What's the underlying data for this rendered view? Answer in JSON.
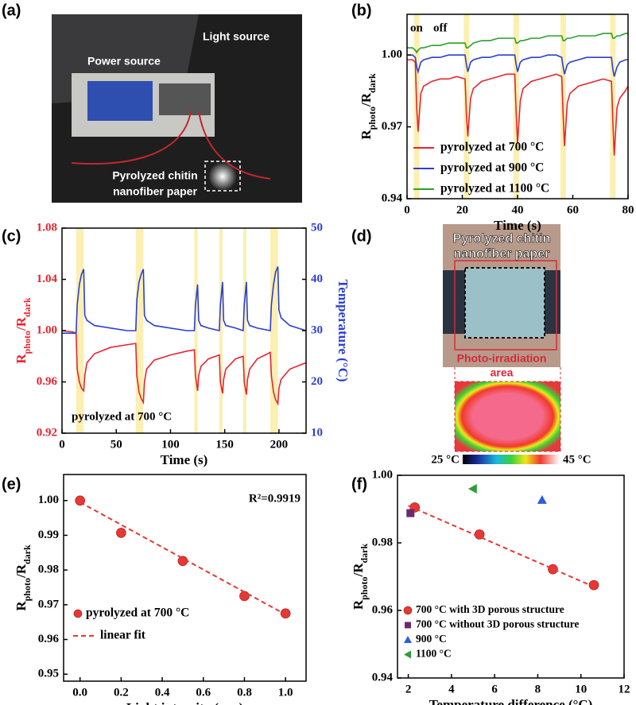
{
  "photos": [
    {
      "panel": "(a)",
      "labels": [
        "Light source",
        "Power source",
        "Pyrolyzed chitin",
        "nanofiber paper"
      ]
    },
    {
      "panel": "(d)",
      "labels": [
        "Pyrolyzed chitin",
        "nanofiber paper",
        "Photo-irradiation",
        "area"
      ],
      "colorbar": [
        "25 °C",
        "45 °C"
      ]
    }
  ],
  "chart_data": [
    {
      "type": "line",
      "panel": "(b)",
      "xlabel": "Time (s)",
      "ylabel": [
        "R",
        "photo",
        "/R",
        "dark"
      ],
      "annotations": [
        "on",
        "off"
      ],
      "legend": "lower left",
      "xlim": [
        0,
        80
      ],
      "xticks": [
        0,
        20,
        40,
        60,
        80
      ],
      "ylim": [
        0.94,
        1.017
      ],
      "yticks": [
        0.94,
        0.97,
        {
          "value": 1.0,
          "label": "1.00"
        }
      ],
      "highlight_x": [
        [
          2.5,
          4.5
        ],
        [
          20.5,
          22.5
        ],
        [
          38.5,
          40.5
        ],
        [
          55.5,
          57.5
        ],
        [
          73.5,
          75.5
        ]
      ],
      "x": [
        0,
        2,
        3,
        3.5,
        4,
        5,
        6,
        9,
        12,
        15,
        18,
        21,
        21.5,
        22,
        23,
        24,
        27,
        30,
        33,
        36,
        39,
        39.5,
        40,
        41,
        42,
        45,
        48,
        51,
        54,
        56,
        56.5,
        57,
        58,
        59,
        62,
        65,
        68,
        71,
        74,
        74.5,
        75,
        76,
        77,
        79,
        80
      ],
      "series": [
        {
          "name": "pyrolyzed at 700 °C",
          "color": "#e8242f",
          "values": [
            0.998,
            0.998,
            0.997,
            0.978,
            0.968,
            0.984,
            0.987,
            0.989,
            0.99,
            0.99,
            0.991,
            0.99,
            0.975,
            0.966,
            0.982,
            0.986,
            0.989,
            0.99,
            0.991,
            0.992,
            0.992,
            0.976,
            0.963,
            0.981,
            0.986,
            0.989,
            0.99,
            0.991,
            0.992,
            0.991,
            0.975,
            0.962,
            0.98,
            0.984,
            0.987,
            0.988,
            0.989,
            0.99,
            0.989,
            0.972,
            0.958,
            0.978,
            0.982,
            0.985,
            0.987
          ]
        },
        {
          "name": "pyrolyzed at 900 °C",
          "color": "#2b3fd1",
          "values": [
            1.0,
            1.0,
            0.999,
            0.995,
            0.993,
            0.997,
            0.998,
            0.999,
            0.999,
            1.0,
            1.0,
            1.0,
            0.996,
            0.993,
            0.997,
            0.998,
            0.999,
            0.999,
            1.0,
            1.0,
            1.0,
            0.996,
            0.993,
            0.997,
            0.998,
            0.999,
            0.999,
            1.0,
            1.0,
            0.999,
            0.995,
            0.992,
            0.996,
            0.997,
            0.998,
            0.999,
            0.999,
            0.999,
            0.999,
            0.994,
            0.991,
            0.995,
            0.997,
            0.998,
            0.998
          ]
        },
        {
          "name": "pyrolyzed at 1100 °C",
          "color": "#2ca02c",
          "values": [
            1.003,
            1.003,
            1.002,
            1.001,
            1.002,
            1.003,
            1.003,
            1.004,
            1.004,
            1.005,
            1.005,
            1.005,
            1.003,
            1.003,
            1.004,
            1.005,
            1.006,
            1.006,
            1.007,
            1.007,
            1.007,
            1.005,
            1.005,
            1.006,
            1.006,
            1.007,
            1.007,
            1.008,
            1.008,
            1.008,
            1.006,
            1.006,
            1.007,
            1.007,
            1.008,
            1.008,
            1.008,
            1.009,
            1.009,
            1.007,
            1.007,
            1.008,
            1.008,
            1.009,
            1.009
          ]
        }
      ]
    },
    {
      "type": "line",
      "panel": "(c)",
      "xlabel": "Time (s)",
      "ylabel": [
        "R",
        "photo",
        "/R",
        "dark"
      ],
      "y2label": "Temperature (°C)",
      "annotations": [
        "pyrolyzed at 700 °C"
      ],
      "xlim": [
        0,
        225
      ],
      "xticks": [
        0,
        50,
        100,
        150,
        200
      ],
      "ylim": [
        0.92,
        1.08
      ],
      "yticks": [
        0.92,
        0.96,
        {
          "value": 1.0,
          "label": "1.00"
        },
        1.04,
        1.08
      ],
      "y2lim": [
        10,
        50
      ],
      "y2ticks": [
        10,
        20,
        30,
        40,
        50
      ],
      "highlight_x": [
        [
          13,
          20
        ],
        [
          68,
          75
        ],
        [
          122,
          125
        ],
        [
          145,
          148
        ],
        [
          167,
          170
        ],
        [
          192,
          199
        ]
      ],
      "x": [
        0,
        10,
        13,
        14,
        16,
        18,
        20,
        21,
        23,
        30,
        45,
        60,
        68,
        69,
        71,
        73,
        75,
        76,
        78,
        85,
        100,
        115,
        122,
        123,
        125,
        126,
        128,
        135,
        145,
        146,
        148,
        149,
        151,
        160,
        167,
        168,
        170,
        171,
        173,
        180,
        192,
        193,
        195,
        197,
        199,
        200,
        202,
        210,
        225
      ],
      "series": [
        {
          "color": "#e8242f",
          "values": [
            1.0,
            0.999,
            0.998,
            0.97,
            0.96,
            0.955,
            0.953,
            0.965,
            0.975,
            0.982,
            0.987,
            0.989,
            0.99,
            0.965,
            0.952,
            0.947,
            0.944,
            0.96,
            0.97,
            0.977,
            0.981,
            0.984,
            0.985,
            0.965,
            0.953,
            0.965,
            0.972,
            0.978,
            0.981,
            0.96,
            0.951,
            0.962,
            0.97,
            0.978,
            0.98,
            0.96,
            0.95,
            0.962,
            0.97,
            0.978,
            0.983,
            0.965,
            0.952,
            0.946,
            0.943,
            0.955,
            0.962,
            0.97,
            0.975
          ]
        },
        {
          "color": "#2b3fd1",
          "axis": "y2",
          "values": [
            29.5,
            29.5,
            29.5,
            35,
            39,
            41,
            42,
            33,
            32,
            31,
            30.5,
            30,
            30,
            36,
            39.5,
            41,
            42,
            33,
            32,
            31,
            30.5,
            30,
            30,
            35,
            39,
            32,
            31,
            30.5,
            30,
            35,
            39.5,
            32,
            31,
            30.5,
            30,
            35,
            39.5,
            32,
            31,
            30.5,
            30,
            35,
            39,
            41.5,
            42.5,
            34,
            32.5,
            31,
            30
          ]
        }
      ]
    },
    {
      "type": "scatter",
      "panel": "(e)",
      "xlabel": "Light intensity (sun)",
      "ylabel": [
        "R",
        "photo",
        "/R",
        "dark"
      ],
      "annotations": [
        "R²=0.9919"
      ],
      "legend": "lower left",
      "xlim": [
        -0.08,
        1.1
      ],
      "xticks": [
        {
          "value": 0,
          "label": "0.0"
        },
        0.2,
        0.4,
        0.6,
        0.8,
        {
          "value": 1,
          "label": "1.0"
        }
      ],
      "ylim": [
        0.948,
        1.0075
      ],
      "yticks": [
        0.95,
        0.96,
        0.97,
        0.98,
        0.99,
        {
          "value": 1.0,
          "label": "1.00"
        }
      ],
      "series": [
        {
          "name": "pyrolyzed at 700 °C",
          "color": "#e53935",
          "marker": "circle",
          "x": [
            0,
            0.2,
            0.5,
            0.8,
            1.0
          ],
          "values": [
            1.0,
            0.9907,
            0.9826,
            0.9725,
            0.9675
          ]
        },
        {
          "name": "linear fit",
          "color": "#e53935",
          "linestyle": "dashed",
          "x": [
            0,
            1.0
          ],
          "values": [
            0.9995,
            0.9672
          ]
        }
      ]
    },
    {
      "type": "scatter",
      "panel": "(f)",
      "xlabel": "Temperature difference (°C)",
      "ylabel": [
        "R",
        "photo",
        "/R",
        "dark"
      ],
      "legend": "lower left",
      "xlim": [
        1.5,
        12
      ],
      "xticks": [
        2,
        4,
        6,
        8,
        10,
        12
      ],
      "ylim": [
        0.94,
        1.0
      ],
      "yticks": [
        0.94,
        0.96,
        0.98,
        {
          "value": 1.0,
          "label": "1.00"
        }
      ],
      "series": [
        {
          "name": "700 °C with 3D porous structure",
          "color": "#e53935",
          "marker": "circle",
          "x": [
            2.3,
            5.3,
            8.7,
            10.6
          ],
          "values": [
            0.9905,
            0.9825,
            0.9722,
            0.9675
          ]
        },
        {
          "name": "700 °C without 3D porous structure",
          "color": "#6b2a6e",
          "marker": "square",
          "x": [
            2.1
          ],
          "values": [
            0.9888
          ]
        },
        {
          "name": "900 °C",
          "color": "#2d5be3",
          "marker": "triangle",
          "x": [
            8.2
          ],
          "values": [
            0.9927
          ]
        },
        {
          "name": "1100 °C",
          "color": "#2e9c3a",
          "marker": "triangle-left",
          "x": [
            5.0
          ],
          "values": [
            0.996
          ]
        },
        {
          "color": "#e53935",
          "linestyle": "dashed",
          "x": [
            2.0,
            10.6
          ],
          "values": [
            0.991,
            0.967
          ]
        }
      ]
    }
  ]
}
